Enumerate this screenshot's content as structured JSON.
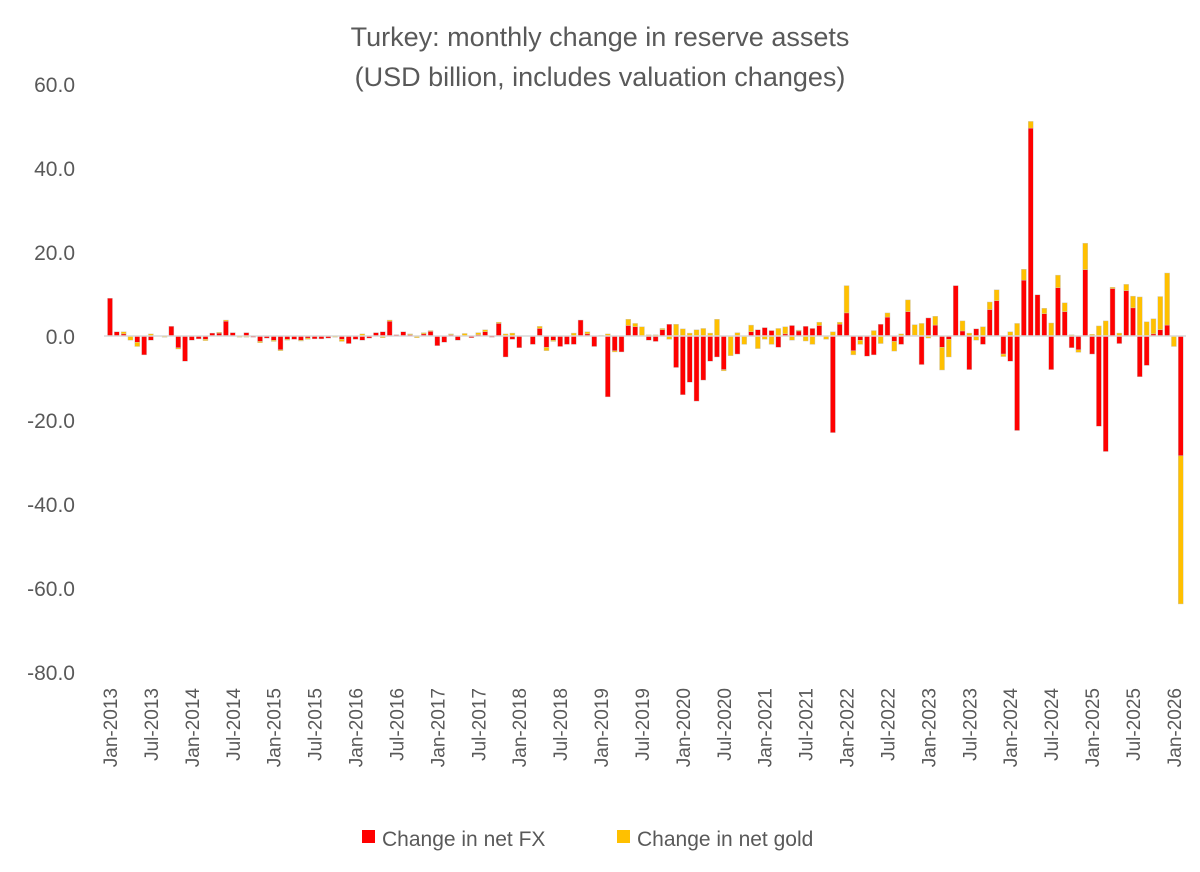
{
  "chart_data": {
    "type": "bar",
    "stacked": true,
    "title": [
      "Turkey: monthly change in reserve assets",
      "(USD billion, includes valuation changes)"
    ],
    "xlabel": "",
    "ylabel": "",
    "ylim": [
      -80,
      60
    ],
    "yticks": [
      "60.0",
      "40.0",
      "20.0",
      "0.0",
      "-20.0",
      "-40.0",
      "-60.0",
      "-80.0"
    ],
    "ytick_values": [
      60,
      40,
      20,
      0,
      -20,
      -40,
      -60,
      -80
    ],
    "grid": false,
    "legend_placement": "bottom",
    "x_start": "Jan-2013",
    "x_end": "Feb-2026",
    "xtick_labels": [
      "Jan-2013",
      "Jul-2013",
      "Jan-2014",
      "Jul-2014",
      "Jan-2015",
      "Jul-2015",
      "Jan-2016",
      "Jul-2016",
      "Jan-2017",
      "Jul-2017",
      "Jan-2018",
      "Jul-2018",
      "Jan-2019",
      "Jul-2019",
      "Jan-2020",
      "Jul-2020",
      "Jan-2021",
      "Jul-2021",
      "Jan-2022",
      "Jul-2022",
      "Jan-2023",
      "Jul-2023",
      "Jan-2024",
      "Jul-2024",
      "Jan-2025",
      "Jul-2025",
      "Jan-2026"
    ],
    "series": [
      {
        "name": "Change in net FX",
        "color": "#FF0000",
        "values": [
          9,
          1,
          0.5,
          0,
          -1.5,
          -4.5,
          -1,
          0,
          0,
          2.3,
          -2.8,
          -6,
          -1,
          -0.7,
          -0.8,
          0.7,
          0.7,
          3.5,
          0.8,
          0,
          0.8,
          -0.3,
          -1.3,
          -0.5,
          -1,
          -3.3,
          -0.8,
          -0.8,
          -1,
          -0.5,
          -0.7,
          -0.7,
          -0.5,
          0,
          -0.8,
          -1.8,
          -0.8,
          -1,
          -0.5,
          0.8,
          1,
          3.5,
          0.3,
          1,
          0.3,
          0,
          0.5,
          1.1,
          -2.3,
          -1.5,
          0.3,
          -1,
          0,
          -0.4,
          0.3,
          1,
          -0.3,
          3,
          -5,
          -0.8,
          -2.8,
          0,
          -2,
          1.8,
          -2.7,
          -1,
          -2.5,
          -2,
          -2,
          3.8,
          0.5,
          -2.5,
          0,
          -14.5,
          -3.5,
          -3.8,
          2.5,
          2.2,
          0,
          -1,
          -1.3,
          1.5,
          2.8,
          -7.5,
          -14,
          -11,
          -15.5,
          -10.5,
          -6,
          -5,
          -8,
          0,
          -4.3,
          0,
          1,
          1.5,
          2,
          1.3,
          -2.7,
          0.5,
          2.5,
          1.2,
          2.3,
          1.8,
          2.5,
          0,
          -23,
          2.8,
          5.5,
          -3.5,
          -1,
          -4.8,
          -4.5,
          2.8,
          4.5,
          -1.3,
          -2,
          5.8,
          0.2,
          -6.8,
          4.3,
          2.6,
          -2.7,
          -0.8,
          12,
          1.2,
          -8,
          1.7,
          -2,
          6.3,
          8.4,
          -4.3,
          -6,
          -22.5,
          13.3,
          49.5,
          9.8,
          5.3,
          -8,
          11.5,
          5.8,
          -2.8,
          -3.3,
          15.8,
          -4.3,
          -21.5,
          -27.5,
          11.3,
          -1.8,
          10.8,
          6.7,
          -9.7,
          -7,
          0.5,
          1.5,
          2.6,
          0,
          -28.5
        ]
      },
      {
        "name": "Change in net gold",
        "color": "#FFC000",
        "values": [
          0,
          0,
          0.5,
          -1,
          -1,
          0,
          0.5,
          0,
          -0.3,
          0,
          -0.3,
          0,
          0,
          0,
          -0.3,
          0,
          0.2,
          0.3,
          0,
          -0.3,
          -0.3,
          0,
          -0.3,
          0,
          -0.3,
          -0.2,
          -0.2,
          0,
          -0.2,
          -0.3,
          0,
          0,
          0,
          -0.3,
          -0.5,
          0,
          0,
          0.5,
          0,
          0,
          -0.4,
          0.3,
          0,
          0,
          0.2,
          -0.4,
          0.3,
          0.2,
          0,
          0,
          0.2,
          0,
          0.6,
          0,
          0.5,
          0.5,
          0,
          0.3,
          0.5,
          0.7,
          0,
          0,
          0,
          0.5,
          -0.8,
          -0.3,
          0,
          0,
          0.7,
          0,
          0.5,
          0,
          0.2,
          0.5,
          -0.3,
          0,
          1.5,
          0.8,
          2.2,
          0.3,
          0.3,
          0.3,
          -0.8,
          2.8,
          1.7,
          0.7,
          1.5,
          1.8,
          0.7,
          4,
          -0.3,
          -4.7,
          0.8,
          -2,
          1.6,
          -3,
          -0.8,
          -2,
          1.8,
          1.7,
          -1,
          0.2,
          -1.2,
          -2,
          0.8,
          -0.8,
          1,
          0.5,
          6.5,
          -1,
          -1,
          0,
          1.3,
          -1.8,
          1,
          -2.3,
          0.5,
          2.8,
          2.5,
          3,
          -0.5,
          2.1,
          -5.4,
          -4.2,
          0,
          2.4,
          0.7,
          -1,
          2.2,
          1.8,
          2.6,
          -0.6,
          1,
          3,
          2.6,
          1.6,
          0,
          1.3,
          3.1,
          3,
          2.1,
          0.3,
          -0.6,
          6.3,
          0.4,
          2.4,
          3.6,
          0.3,
          0.7,
          1.5,
          2.8,
          9.3,
          3.4,
          3.6,
          7.9,
          12.4,
          -2.5,
          -35.3
        ]
      }
    ]
  }
}
